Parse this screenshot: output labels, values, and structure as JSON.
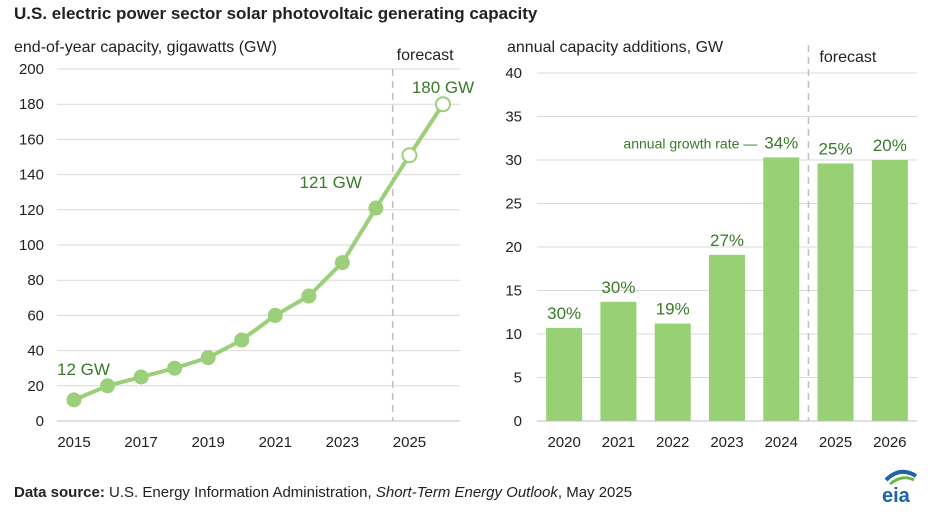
{
  "figure_title": "U.S. electric power sector solar photovoltaic generating capacity",
  "footer": {
    "label": "Data source:",
    "source": "U.S. Energy Information Administration,",
    "publication": "Short-Term Energy Outlook",
    "date": ", May 2025"
  },
  "logo_text": "eia",
  "colors": {
    "line": "#9ccf7a",
    "bar": "#97d075",
    "annotation_text": "#3a7a2a",
    "grid": "#d9d9d9",
    "divider": "#bfbfbf",
    "logo_blue": "#1f63a8",
    "logo_green": "#6bb846"
  },
  "chart_data": [
    {
      "type": "line",
      "ylabel": "end-of-year capacity, gigawatts (GW)",
      "xlabel": "",
      "x": [
        2015,
        2016,
        2017,
        2018,
        2019,
        2020,
        2021,
        2022,
        2023,
        2024,
        2025,
        2026
      ],
      "xticks": [
        "2015",
        "2017",
        "2019",
        "2021",
        "2023",
        "2025"
      ],
      "series": [
        {
          "values": [
            12,
            20,
            25,
            30,
            36,
            46,
            60,
            71,
            90,
            121,
            151,
            180
          ],
          "forecast_from": 2025
        }
      ],
      "ylim": [
        0,
        200
      ],
      "yticks": [
        "0",
        "20",
        "40",
        "60",
        "80",
        "100",
        "120",
        "140",
        "160",
        "180",
        "200"
      ],
      "grid": true,
      "forecast_label": "forecast",
      "annotations": [
        {
          "x": 2015,
          "y": 12,
          "text": "12 GW"
        },
        {
          "x": 2024,
          "y": 121,
          "text": "121 GW"
        },
        {
          "x": 2026,
          "y": 180,
          "text": "180 GW"
        }
      ]
    },
    {
      "type": "bar",
      "ylabel": "annual capacity additions, GW",
      "xlabel": "",
      "categories": [
        "2020",
        "2021",
        "2022",
        "2023",
        "2024",
        "2025",
        "2026"
      ],
      "values": [
        10.7,
        13.7,
        11.2,
        19.1,
        30.3,
        29.6,
        30.0
      ],
      "data_labels": [
        "30%",
        "30%",
        "19%",
        "27%",
        "34%",
        "25%",
        "20%"
      ],
      "ylim": [
        0,
        40
      ],
      "yticks": [
        "0",
        "5",
        "10",
        "15",
        "20",
        "25",
        "30",
        "35",
        "40"
      ],
      "grid": true,
      "forecast_label": "forecast",
      "annotation": "annual  growth rate —"
    }
  ]
}
